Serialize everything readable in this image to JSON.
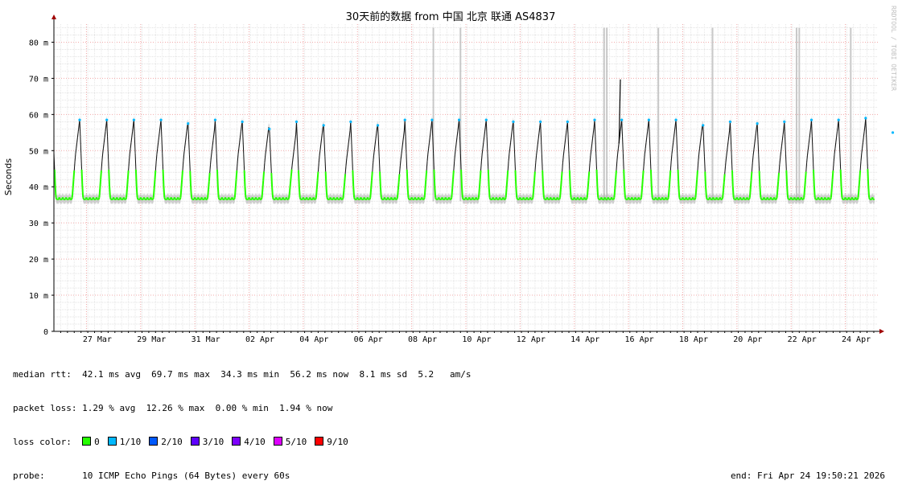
{
  "chart_data": {
    "type": "line",
    "title": "30天前的数据 from 中国 北京 联通 AS4837",
    "ylabel": "Seconds",
    "ylim": [
      0,
      85
    ],
    "grid": true,
    "yticks": [
      {
        "value": 0,
        "label": "0"
      },
      {
        "value": 10,
        "label": "10 m"
      },
      {
        "value": 20,
        "label": "20 m"
      },
      {
        "value": 30,
        "label": "30 m"
      },
      {
        "value": 40,
        "label": "40 m"
      },
      {
        "value": 50,
        "label": "50 m"
      },
      {
        "value": 60,
        "label": "60 m"
      },
      {
        "value": 70,
        "label": "70 m"
      },
      {
        "value": 80,
        "label": "80 m"
      }
    ],
    "xlim_days": [
      0,
      30.4
    ],
    "xticks": [
      {
        "day": 1.6,
        "label": "27 Mar"
      },
      {
        "day": 3.6,
        "label": "29 Mar"
      },
      {
        "day": 5.6,
        "label": "31 Mar"
      },
      {
        "day": 7.6,
        "label": "02 Apr"
      },
      {
        "day": 9.6,
        "label": "04 Apr"
      },
      {
        "day": 11.6,
        "label": "06 Apr"
      },
      {
        "day": 13.6,
        "label": "08 Apr"
      },
      {
        "day": 15.6,
        "label": "10 Apr"
      },
      {
        "day": 17.6,
        "label": "12 Apr"
      },
      {
        "day": 19.6,
        "label": "14 Apr"
      },
      {
        "day": 21.6,
        "label": "16 Apr"
      },
      {
        "day": 23.6,
        "label": "18 Apr"
      },
      {
        "day": 25.6,
        "label": "20 Apr"
      },
      {
        "day": 27.6,
        "label": "22 Apr"
      },
      {
        "day": 29.6,
        "label": "24 Apr"
      }
    ],
    "series": [
      {
        "name": "median rtt",
        "baseline_ms": 36.5,
        "daily_peaks_ms": [
          58.5,
          58.5,
          58.5,
          58.5,
          58.5,
          57.5,
          58.5,
          58,
          56,
          58,
          57,
          58,
          57,
          58.5,
          58.5,
          58.5,
          58.5,
          58,
          58,
          58,
          58.5,
          58.5,
          58.5,
          58.5,
          57,
          58,
          57.5,
          58,
          58.5,
          58.5,
          59,
          55
        ],
        "max_spike_ms": 69.7
      }
    ],
    "loss_spikes_days": [
      14.0,
      15.0,
      20.3,
      20.4,
      22.3,
      24.3,
      27.4,
      27.5,
      29.4
    ],
    "watermark": "RRDTOOL / TOBI OETIKER"
  },
  "stats": {
    "rtt_line": "median rtt:  42.1 ms avg  69.7 ms max  34.3 ms min  56.2 ms now  8.1 ms sd  5.2   am/s",
    "loss_line": "packet loss: 1.29 % avg  12.26 % max  0.00 % min  1.94 % now",
    "loss_color_label": "loss color:",
    "probe_line": "probe:       10 ICMP Echo Pings (64 Bytes) every 60s",
    "end_line": "end: Fri Apr 24 19:50:21 2026"
  },
  "loss_colors": [
    {
      "label": "0",
      "color": "#26ff00"
    },
    {
      "label": "1/10",
      "color": "#00b8ff"
    },
    {
      "label": "2/10",
      "color": "#0059ff"
    },
    {
      "label": "3/10",
      "color": "#5e00ff"
    },
    {
      "label": "4/10",
      "color": "#7e00ff"
    },
    {
      "label": "5/10",
      "color": "#dd00ff"
    },
    {
      "label": "9/10",
      "color": "#ff0000"
    }
  ]
}
